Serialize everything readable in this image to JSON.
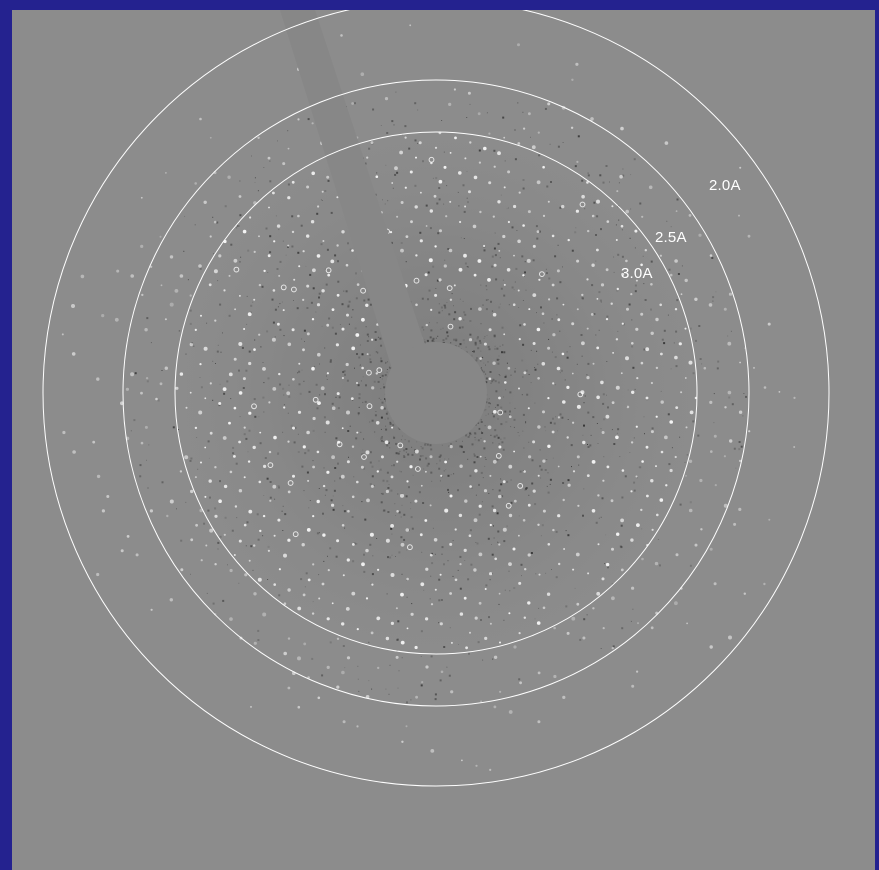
{
  "image": {
    "subject": "x-ray-diffraction-pattern",
    "colors": {
      "border": "#24228f",
      "background": "#8c8c8c",
      "rings": "#ffffff",
      "beamstop": "#878787"
    }
  },
  "resolution_rings": [
    {
      "label": "2.0A"
    },
    {
      "label": "2.5A"
    },
    {
      "label": "3.0A"
    }
  ]
}
